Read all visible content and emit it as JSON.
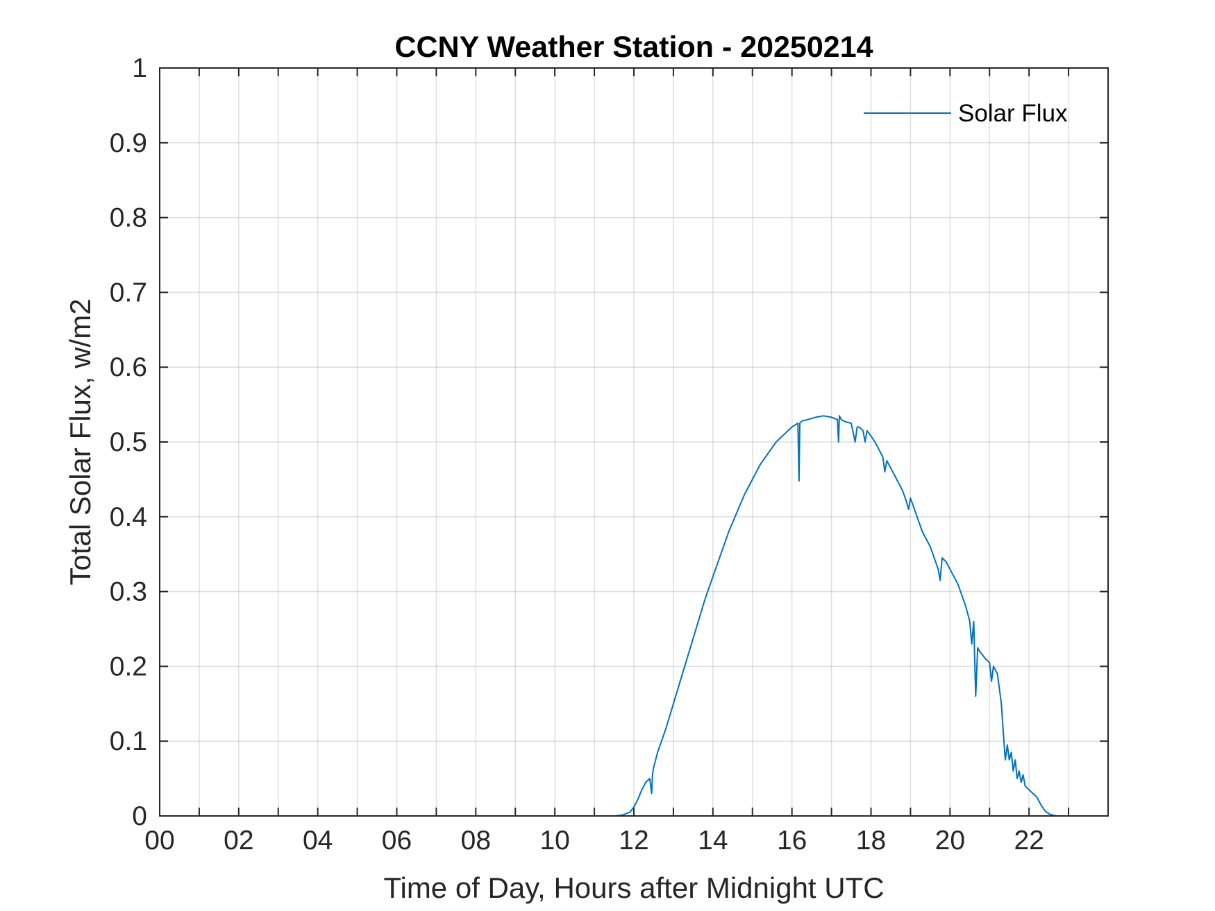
{
  "chart_data": {
    "type": "line",
    "title": "CCNY Weather Station - 20250214",
    "xlabel": "Time of Day, Hours after Midnight UTC",
    "ylabel": "Total Solar Flux, w/m2",
    "xlim": [
      0,
      24
    ],
    "ylim": [
      0,
      1
    ],
    "grid": true,
    "legend_location": "top-right",
    "xticks": [
      0,
      2,
      4,
      6,
      8,
      10,
      12,
      14,
      16,
      18,
      20,
      22
    ],
    "xtick_labels": [
      "00",
      "02",
      "04",
      "06",
      "08",
      "10",
      "12",
      "14",
      "16",
      "18",
      "20",
      "22"
    ],
    "minor_xgrid": [
      1,
      3,
      5,
      7,
      9,
      11,
      13,
      15,
      17,
      19,
      21,
      23
    ],
    "yticks": [
      0,
      0.1,
      0.2,
      0.3,
      0.4,
      0.5,
      0.6,
      0.7,
      0.8,
      0.9,
      1
    ],
    "ytick_labels": [
      "0",
      "0.1",
      "0.2",
      "0.3",
      "0.4",
      "0.5",
      "0.6",
      "0.7",
      "0.8",
      "0.9",
      "1"
    ],
    "series": [
      {
        "name": "Solar Flux",
        "color": "#0072BD",
        "x": [
          0,
          11.5,
          11.7,
          11.9,
          12.0,
          12.1,
          12.2,
          12.3,
          12.4,
          12.45,
          12.47,
          12.5,
          12.55,
          12.6,
          12.8,
          13.0,
          13.2,
          13.4,
          13.6,
          13.8,
          14.0,
          14.2,
          14.4,
          14.6,
          14.8,
          15.0,
          15.2,
          15.4,
          15.6,
          15.8,
          16.0,
          16.15,
          16.18,
          16.2,
          16.25,
          16.4,
          16.6,
          16.8,
          17.0,
          17.15,
          17.18,
          17.2,
          17.25,
          17.35,
          17.5,
          17.6,
          17.65,
          17.7,
          17.8,
          17.85,
          17.9,
          18.0,
          18.1,
          18.2,
          18.3,
          18.35,
          18.4,
          18.5,
          18.6,
          18.7,
          18.8,
          18.9,
          18.95,
          19.0,
          19.1,
          19.2,
          19.3,
          19.4,
          19.5,
          19.6,
          19.7,
          19.75,
          19.8,
          19.9,
          20.0,
          20.2,
          20.4,
          20.5,
          20.55,
          20.6,
          20.65,
          20.7,
          20.75,
          20.9,
          21.0,
          21.05,
          21.1,
          21.2,
          21.3,
          21.35,
          21.4,
          21.45,
          21.5,
          21.55,
          21.6,
          21.65,
          21.7,
          21.75,
          21.8,
          21.85,
          21.9,
          22.0,
          22.1,
          22.2,
          22.3,
          22.4,
          22.5,
          22.6,
          22.7,
          22.9,
          23.2,
          24.0
        ],
        "values": [
          0,
          0,
          0.001,
          0.005,
          0.012,
          0.022,
          0.035,
          0.045,
          0.05,
          0.03,
          0.055,
          0.065,
          0.075,
          0.085,
          0.115,
          0.15,
          0.185,
          0.22,
          0.255,
          0.29,
          0.32,
          0.35,
          0.38,
          0.405,
          0.43,
          0.45,
          0.47,
          0.485,
          0.5,
          0.51,
          0.52,
          0.525,
          0.448,
          0.525,
          0.528,
          0.53,
          0.533,
          0.535,
          0.533,
          0.53,
          0.5,
          0.535,
          0.53,
          0.527,
          0.525,
          0.5,
          0.52,
          0.52,
          0.515,
          0.5,
          0.515,
          0.508,
          0.5,
          0.49,
          0.48,
          0.46,
          0.475,
          0.465,
          0.455,
          0.445,
          0.435,
          0.42,
          0.41,
          0.425,
          0.41,
          0.395,
          0.38,
          0.37,
          0.36,
          0.345,
          0.33,
          0.315,
          0.345,
          0.34,
          0.33,
          0.31,
          0.28,
          0.26,
          0.23,
          0.26,
          0.16,
          0.225,
          0.22,
          0.21,
          0.205,
          0.18,
          0.2,
          0.19,
          0.15,
          0.11,
          0.075,
          0.095,
          0.075,
          0.085,
          0.06,
          0.075,
          0.05,
          0.06,
          0.045,
          0.055,
          0.04,
          0.035,
          0.03,
          0.025,
          0.015,
          0.007,
          0.003,
          0.001,
          0.0,
          0.0,
          0.0,
          0.0
        ]
      }
    ]
  }
}
